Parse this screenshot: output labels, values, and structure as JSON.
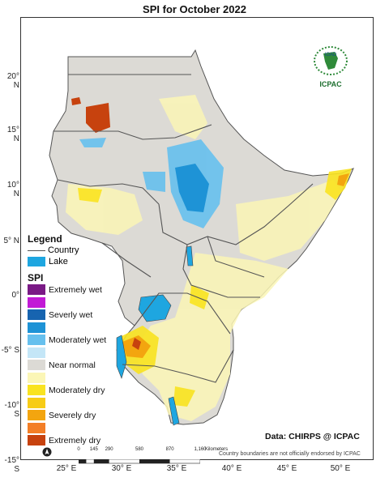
{
  "title": "SPI    for    October 2022",
  "axes": {
    "latitude_labels": [
      "20° N",
      "15° N",
      "10° N",
      "5° N",
      "0°",
      "-5° S",
      "-10° S",
      "-15° S"
    ],
    "longitude_labels": [
      "25° E",
      "30° E",
      "35° E",
      "40° E",
      "45° E",
      "50° E"
    ]
  },
  "legend": {
    "heading": "Legend",
    "country_label": "Country",
    "lake_label": "Lake",
    "lake_color": "#1ea6e0",
    "spi_heading": "SPI",
    "classes": [
      {
        "label": "Extremely wet",
        "color": "#7a1a86"
      },
      {
        "label": "",
        "color": "#c21ad6"
      },
      {
        "label": "Severly wet",
        "color": "#1764b0"
      },
      {
        "label": "",
        "color": "#1e93d6"
      },
      {
        "label": "Moderately wet",
        "color": "#66c0ee"
      },
      {
        "label": "",
        "color": "#c4e6f7"
      },
      {
        "label": "Near normal",
        "color": "#dcdad5"
      },
      {
        "label": "",
        "color": "#fbf6b6"
      },
      {
        "label": "Moderately dry",
        "color": "#f9e320"
      },
      {
        "label": "",
        "color": "#f7cc16"
      },
      {
        "label": "Severely dry",
        "color": "#f3a50f"
      },
      {
        "label": "",
        "color": "#f37e26"
      },
      {
        "label": "Extremely dry",
        "color": "#c7420e"
      }
    ]
  },
  "logo": {
    "org_text": "IGAD",
    "label": "ICPAC"
  },
  "source": "Data: CHIRPS @ ICPAC",
  "disclaimer": "Country boundaries are not officially endorsed by ICPAC",
  "scale_bar": {
    "ticks": [
      "0",
      "145",
      "290",
      "580",
      "870",
      "1,160"
    ],
    "unit": "Kilometers"
  },
  "icons": {
    "north_arrow": "north-arrow-icon",
    "logo": "igad-logo-icon"
  }
}
